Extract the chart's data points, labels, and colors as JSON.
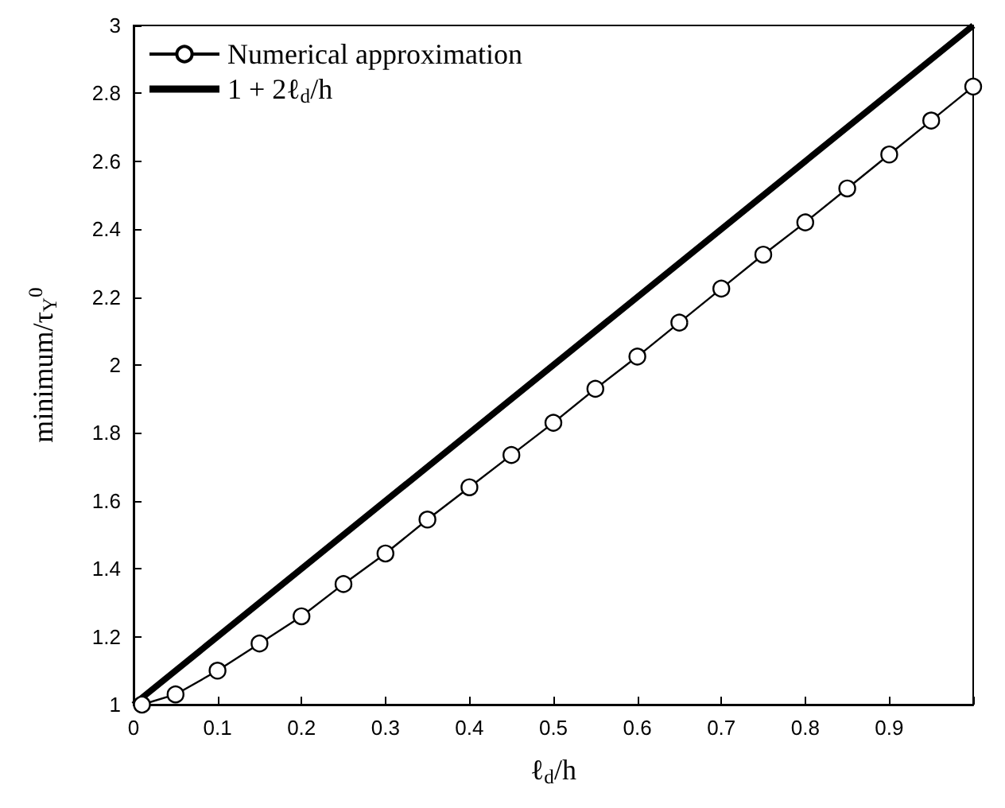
{
  "chart_data": {
    "type": "line",
    "xlabel": "ℓ$_{d}$/h",
    "ylabel": "minimum/τ$_{Y}$$^{0}$",
    "xlim": [
      0,
      1
    ],
    "xticks": [
      0,
      0.1,
      0.2,
      0.3,
      0.4,
      0.5,
      0.6,
      0.7,
      0.8,
      0.9,
      {
        "value": 1,
        "label": null
      }
    ],
    "ylim": [
      1,
      3
    ],
    "yticks": [
      1,
      1.2,
      1.4,
      1.6,
      1.8,
      2,
      2.2,
      2.4,
      2.6,
      2.8,
      3
    ],
    "grid": false,
    "legend": "top left",
    "series": [
      {
        "name": "Numerical approximation",
        "color": "#000000",
        "marker": "circle",
        "x": [
          0.01,
          0.05,
          0.1,
          0.15,
          0.2,
          0.25,
          0.3,
          0.35,
          0.4,
          0.45,
          0.5,
          0.55,
          0.6,
          0.65,
          0.7,
          0.75,
          0.8,
          0.85,
          0.9,
          0.95,
          1.0
        ],
        "values": [
          1.0,
          1.03,
          1.1,
          1.18,
          1.26,
          1.355,
          1.445,
          1.545,
          1.64,
          1.735,
          1.83,
          1.93,
          2.025,
          2.125,
          2.225,
          2.325,
          2.42,
          2.52,
          2.62,
          2.72,
          2.82
        ]
      },
      {
        "name": "1 + 2ℓ$_{d}$/h",
        "color": "#000000",
        "marker": "none",
        "x": [
          0,
          1
        ],
        "values": [
          1,
          3
        ]
      }
    ]
  }
}
